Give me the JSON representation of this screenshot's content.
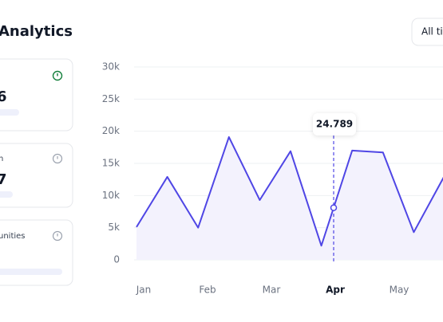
{
  "header": {
    "title": "Analytics",
    "button": "All ti"
  },
  "cards": [
    {
      "value": "6"
    },
    {
      "label": "n",
      "value": "7"
    },
    {
      "label": "unities"
    }
  ],
  "chart_data": {
    "type": "line",
    "x_labels": [
      "Jan",
      "Feb",
      "Mar",
      "Apr",
      "May"
    ],
    "active_label": "Apr",
    "values": [
      5100,
      12900,
      5000,
      19100,
      9300,
      16900,
      2200,
      17000,
      16700,
      4300,
      13100
    ],
    "color": "#4f46e5",
    "tooltip": "24.789",
    "ylim": [
      0,
      30000
    ],
    "yticks": [
      0,
      {
        "value": 5000,
        "label": "5k"
      },
      {
        "value": 10000,
        "label": "10k"
      },
      {
        "value": 15000,
        "label": "15k"
      },
      {
        "value": 20000,
        "label": "20k"
      },
      {
        "value": 25000,
        "label": "25k"
      },
      {
        "value": 30000,
        "label": "30k"
      }
    ],
    "grid": true
  }
}
